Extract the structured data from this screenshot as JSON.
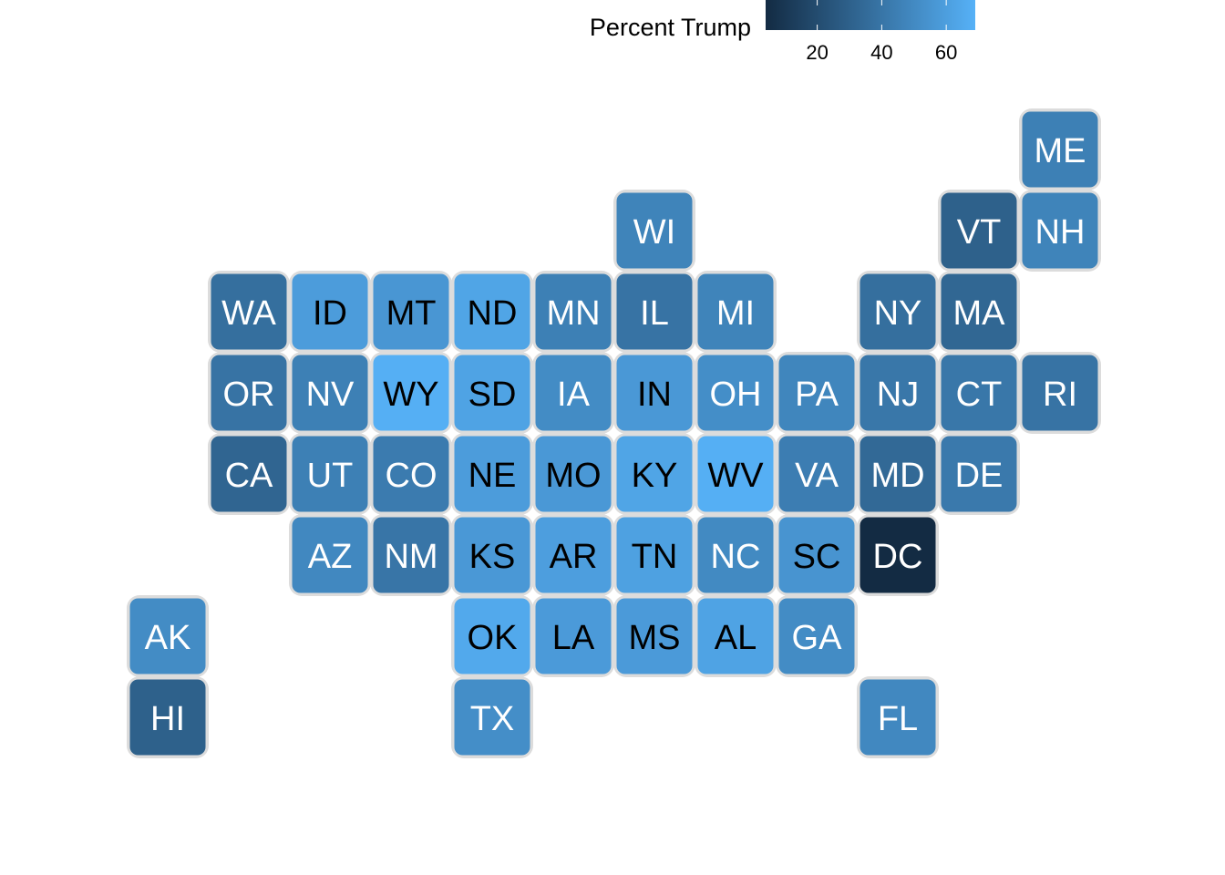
{
  "chart_data": {
    "type": "heatmap",
    "subtype": "us-state-tile-grid-map",
    "legend": {
      "title": "Percent Trump",
      "ticks": [
        20,
        40,
        60
      ],
      "range": [
        4,
        69
      ],
      "colors": [
        "#132b43",
        "#56b1f7"
      ],
      "placement": "top-center"
    },
    "grid": false,
    "states": [
      {
        "abbr": "ME",
        "col": 11,
        "row": 0,
        "value": 45
      },
      {
        "abbr": "WI",
        "col": 6,
        "row": 1,
        "value": 47
      },
      {
        "abbr": "VT",
        "col": 10,
        "row": 1,
        "value": 30
      },
      {
        "abbr": "NH",
        "col": 11,
        "row": 1,
        "value": 47
      },
      {
        "abbr": "WA",
        "col": 1,
        "row": 2,
        "value": 37
      },
      {
        "abbr": "ID",
        "col": 2,
        "row": 2,
        "value": 59
      },
      {
        "abbr": "MT",
        "col": 3,
        "row": 2,
        "value": 56
      },
      {
        "abbr": "ND",
        "col": 4,
        "row": 2,
        "value": 63
      },
      {
        "abbr": "MN",
        "col": 5,
        "row": 2,
        "value": 45
      },
      {
        "abbr": "IL",
        "col": 6,
        "row": 2,
        "value": 39
      },
      {
        "abbr": "MI",
        "col": 7,
        "row": 2,
        "value": 47
      },
      {
        "abbr": "NY",
        "col": 9,
        "row": 2,
        "value": 37
      },
      {
        "abbr": "MA",
        "col": 10,
        "row": 2,
        "value": 33
      },
      {
        "abbr": "OR",
        "col": 1,
        "row": 3,
        "value": 39
      },
      {
        "abbr": "NV",
        "col": 2,
        "row": 3,
        "value": 45
      },
      {
        "abbr": "WY",
        "col": 3,
        "row": 3,
        "value": 68
      },
      {
        "abbr": "SD",
        "col": 4,
        "row": 3,
        "value": 62
      },
      {
        "abbr": "IA",
        "col": 5,
        "row": 3,
        "value": 51
      },
      {
        "abbr": "IN",
        "col": 6,
        "row": 3,
        "value": 57
      },
      {
        "abbr": "OH",
        "col": 7,
        "row": 3,
        "value": 52
      },
      {
        "abbr": "PA",
        "col": 8,
        "row": 3,
        "value": 48
      },
      {
        "abbr": "NJ",
        "col": 9,
        "row": 3,
        "value": 41
      },
      {
        "abbr": "CT",
        "col": 10,
        "row": 3,
        "value": 41
      },
      {
        "abbr": "RI",
        "col": 11,
        "row": 3,
        "value": 39
      },
      {
        "abbr": "CA",
        "col": 1,
        "row": 4,
        "value": 32
      },
      {
        "abbr": "UT",
        "col": 2,
        "row": 4,
        "value": 45
      },
      {
        "abbr": "CO",
        "col": 3,
        "row": 4,
        "value": 43
      },
      {
        "abbr": "NE",
        "col": 4,
        "row": 4,
        "value": 59
      },
      {
        "abbr": "MO",
        "col": 5,
        "row": 4,
        "value": 57
      },
      {
        "abbr": "KY",
        "col": 6,
        "row": 4,
        "value": 63
      },
      {
        "abbr": "WV",
        "col": 7,
        "row": 4,
        "value": 68
      },
      {
        "abbr": "VA",
        "col": 8,
        "row": 4,
        "value": 44
      },
      {
        "abbr": "MD",
        "col": 9,
        "row": 4,
        "value": 34
      },
      {
        "abbr": "DE",
        "col": 10,
        "row": 4,
        "value": 42
      },
      {
        "abbr": "AZ",
        "col": 2,
        "row": 5,
        "value": 49
      },
      {
        "abbr": "NM",
        "col": 3,
        "row": 5,
        "value": 40
      },
      {
        "abbr": "KS",
        "col": 4,
        "row": 5,
        "value": 57
      },
      {
        "abbr": "AR",
        "col": 5,
        "row": 5,
        "value": 60
      },
      {
        "abbr": "TN",
        "col": 6,
        "row": 5,
        "value": 61
      },
      {
        "abbr": "NC",
        "col": 7,
        "row": 5,
        "value": 50
      },
      {
        "abbr": "SC",
        "col": 8,
        "row": 5,
        "value": 55
      },
      {
        "abbr": "DC",
        "col": 9,
        "row": 5,
        "value": 4
      },
      {
        "abbr": "AK",
        "col": 0,
        "row": 6,
        "value": 51
      },
      {
        "abbr": "OK",
        "col": 4,
        "row": 6,
        "value": 65
      },
      {
        "abbr": "LA",
        "col": 5,
        "row": 6,
        "value": 58
      },
      {
        "abbr": "MS",
        "col": 6,
        "row": 6,
        "value": 58
      },
      {
        "abbr": "AL",
        "col": 7,
        "row": 6,
        "value": 62
      },
      {
        "abbr": "GA",
        "col": 8,
        "row": 6,
        "value": 51
      },
      {
        "abbr": "HI",
        "col": 0,
        "row": 7,
        "value": 30
      },
      {
        "abbr": "TX",
        "col": 4,
        "row": 7,
        "value": 52
      },
      {
        "abbr": "FL",
        "col": 9,
        "row": 7,
        "value": 49
      }
    ]
  }
}
